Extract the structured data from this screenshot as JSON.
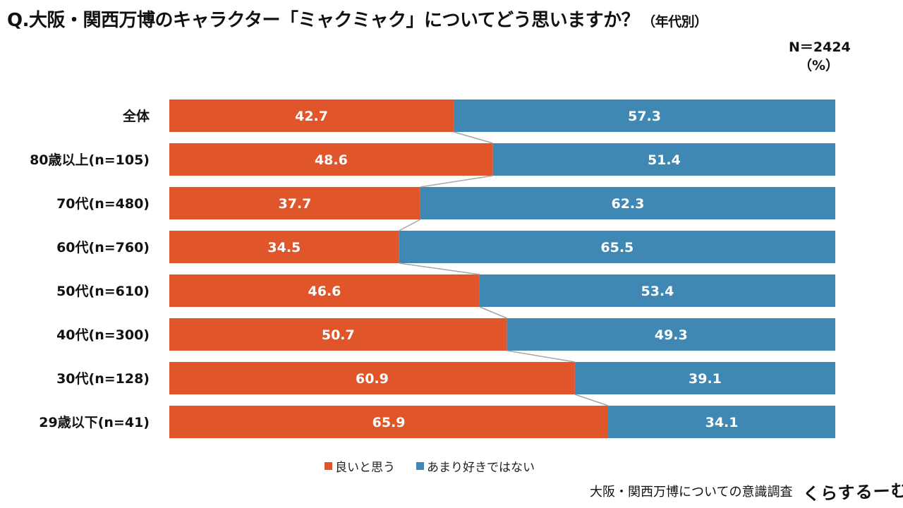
{
  "header": {
    "title": "Q.大阪・関西万博のキャラクター「ミャクミャク」についてどう思いますか？",
    "subtitle": "（年代別）",
    "n_label": "N＝2424",
    "unit_label": "（%）"
  },
  "footer": {
    "source": "大阪・関西万博についての意識調査",
    "logo_text": "くらするーむ"
  },
  "colors": {
    "positive": "#E0552A",
    "negative": "#3F88B3",
    "connector": "#A6A6A6"
  },
  "chart_data": {
    "type": "bar",
    "orientation": "horizontal",
    "stacked": true,
    "percent_stacked": true,
    "title": "Q.大阪・関西万博のキャラクター「ミャクミャク」についてどう思いますか？（年代別）",
    "xlabel": "",
    "ylabel": "",
    "xlim": [
      0,
      100
    ],
    "unit": "%",
    "categories": [
      "全体",
      "80歳以上(n=105)",
      "70代(n=480)",
      "60代(n=760)",
      "50代(n=610)",
      "40代(n=300)",
      "30代(n=128)",
      "29歳以下(n=41)"
    ],
    "series": [
      {
        "name": "良いと思う",
        "values": [
          42.7,
          48.6,
          37.7,
          34.5,
          46.6,
          50.7,
          60.9,
          65.9
        ],
        "labels": [
          "42.7",
          "48.6",
          "37.7",
          "34.5",
          "46.6",
          "50.7",
          "60.9",
          "65.9"
        ]
      },
      {
        "name": "あまり好きではない",
        "values": [
          57.3,
          51.4,
          62.3,
          65.5,
          53.4,
          49.3,
          39.1,
          34.1
        ],
        "labels": [
          "57.3",
          "51.4",
          "62.3",
          "65.5",
          "53.4",
          "49.3",
          "39.1",
          "34.1"
        ]
      }
    ],
    "legend": "bottom",
    "grid": false,
    "series_lines": true
  }
}
